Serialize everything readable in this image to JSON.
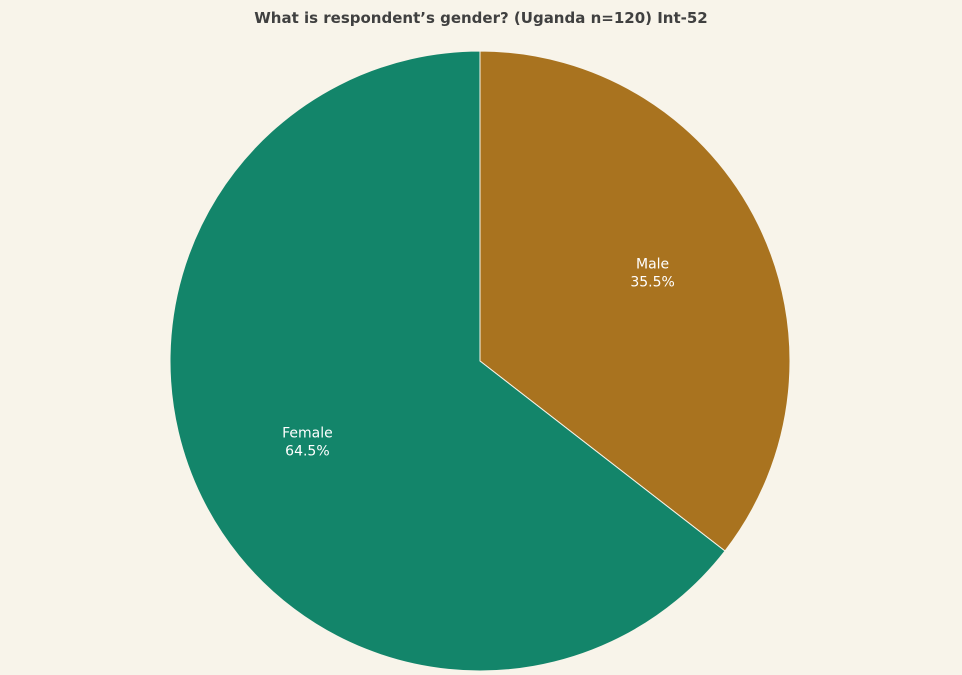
{
  "chart_data": {
    "type": "pie",
    "title": "What is respondent’s gender? (Uganda n=120) Int-52",
    "slices": [
      {
        "label": "Male",
        "value": 35.5,
        "display": "35.5%",
        "color": "#a9731f"
      },
      {
        "label": "Female",
        "value": 64.5,
        "display": "64.5%",
        "color": "#13856a"
      }
    ],
    "start_angle_deg": 0,
    "direction": "clockwise",
    "slice_border_color": "#f8f4ea",
    "background": "#f8f4ea"
  }
}
